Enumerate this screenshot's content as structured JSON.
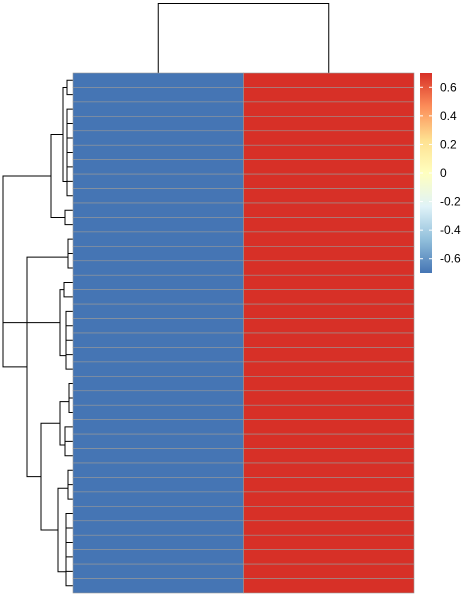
{
  "chart_data": {
    "type": "heatmap",
    "title": "",
    "columns": 2,
    "rows": 36,
    "values": [
      [
        -0.7,
        0.7
      ],
      [
        -0.7,
        0.7
      ],
      [
        -0.7,
        0.7
      ],
      [
        -0.7,
        0.7
      ],
      [
        -0.7,
        0.7
      ],
      [
        -0.7,
        0.7
      ],
      [
        -0.7,
        0.7
      ],
      [
        -0.7,
        0.7
      ],
      [
        -0.7,
        0.7
      ],
      [
        -0.7,
        0.7
      ],
      [
        -0.7,
        0.7
      ],
      [
        -0.7,
        0.7
      ],
      [
        -0.7,
        0.7
      ],
      [
        -0.7,
        0.7
      ],
      [
        -0.7,
        0.7
      ],
      [
        -0.7,
        0.7
      ],
      [
        -0.7,
        0.7
      ],
      [
        -0.7,
        0.7
      ],
      [
        -0.7,
        0.7
      ],
      [
        -0.7,
        0.7
      ],
      [
        -0.7,
        0.7
      ],
      [
        -0.7,
        0.7
      ],
      [
        -0.7,
        0.7
      ],
      [
        -0.7,
        0.7
      ],
      [
        -0.7,
        0.7
      ],
      [
        -0.7,
        0.7
      ],
      [
        -0.7,
        0.7
      ],
      [
        -0.7,
        0.7
      ],
      [
        -0.7,
        0.7
      ],
      [
        -0.7,
        0.7
      ],
      [
        -0.7,
        0.7
      ],
      [
        -0.7,
        0.7
      ],
      [
        -0.7,
        0.7
      ],
      [
        -0.7,
        0.7
      ],
      [
        -0.7,
        0.7
      ],
      [
        -0.7,
        0.7
      ]
    ],
    "color_scale": {
      "range": [
        -0.7,
        0.7
      ],
      "stops": [
        "#4575B4",
        "#91BFDB",
        "#E0F3F8",
        "#FFFFBF",
        "#FEE090",
        "#FC8D59",
        "#D73027"
      ],
      "low_color": "#4575B4",
      "high_color": "#D73027",
      "cell_border": "#999999",
      "ticks": [
        "0.6",
        "0.4",
        "0.2",
        "0",
        "-0.2",
        "-0.4",
        "-0.6"
      ],
      "tick_values": [
        0.6,
        0.4,
        0.2,
        0,
        -0.2,
        -0.4,
        -0.6
      ]
    },
    "column_dendrogram": true,
    "row_dendrogram": true,
    "legend": "right",
    "grid": false
  }
}
